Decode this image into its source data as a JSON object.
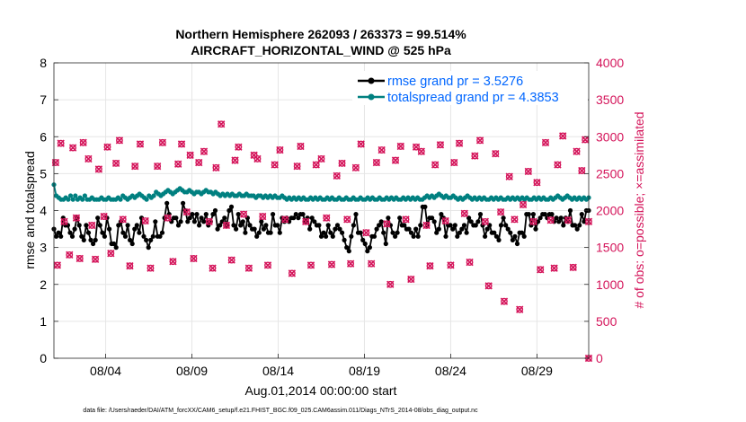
{
  "chart_data": {
    "type": "line",
    "title_line1": "Northern Hemisphere 262093 / 263373 = 99.514%",
    "title_line2": "AIRCRAFT_HORIZONTAL_WIND @ 525 hPa",
    "xlabel": "Aug.01,2014 00:00:00 start",
    "ylabel_left": "rmse and totalspread",
    "ylabel_right": "# of obs: o=possible; ×=assimilated",
    "footer": "data file: /Users/raeder/DAI/ATM_forcXX/CAM6_setup/f.e21.FHIST_BGC.f09_025.CAM6assim.011/Diags_NTrS_2014-08/obs_diag_output.nc",
    "x_tick_labels": [
      "08/04",
      "08/09",
      "08/14",
      "08/19",
      "08/24",
      "08/29"
    ],
    "x_tick_days": [
      4,
      9,
      14,
      19,
      24,
      29
    ],
    "xlim_days": [
      1,
      32
    ],
    "left_axis": {
      "ylim": [
        0,
        8
      ],
      "ticks": [
        "0",
        "1",
        "2",
        "3",
        "4",
        "5",
        "6",
        "7",
        "8"
      ]
    },
    "right_axis": {
      "ylim": [
        0,
        4000
      ],
      "ticks": [
        "0",
        "500",
        "1000",
        "1500",
        "2000",
        "2500",
        "3000",
        "3500",
        "4000"
      ]
    },
    "legend": [
      {
        "label": "rmse grand pr = 3.5276",
        "color": "#000000"
      },
      {
        "label": "totalspread grand pr = 4.3853",
        "color": "#008080"
      }
    ],
    "colors": {
      "rmse": "#000000",
      "spread": "#008080",
      "obs": "#d4145a",
      "legend_text": "#0066ff",
      "grid": "#e6e6e6"
    },
    "rmse_values": [
      3.5,
      3.3,
      3.4,
      3.3,
      3.8,
      3.6,
      3.6,
      3.4,
      3.3,
      3.5,
      3.8,
      3.6,
      3.3,
      3.2,
      3.6,
      3.4,
      3.2,
      3.1,
      3.2,
      3.8,
      3.6,
      3.4,
      3.3,
      3.8,
      3.5,
      3.1,
      3.1,
      3.0,
      3.6,
      3.7,
      3.4,
      3.3,
      3.6,
      3.2,
      3.1,
      3.5,
      3.6,
      3.4,
      3.8,
      3.3,
      3.2,
      3.0,
      3.2,
      3.3,
      3.7,
      3.3,
      3.3,
      3.4,
      3.8,
      4.2,
      3.9,
      3.7,
      3.8,
      3.8,
      3.6,
      3.7,
      4.2,
      4.0,
      3.7,
      3.8,
      3.9,
      3.7,
      3.9,
      3.6,
      3.8,
      3.7,
      3.9,
      3.6,
      3.7,
      3.9,
      4.0,
      3.5,
      3.6,
      3.7,
      3.8,
      3.6,
      4.0,
      4.1,
      3.6,
      3.5,
      3.9,
      3.6,
      3.7,
      3.4,
      3.8,
      3.6,
      3.5,
      3.5,
      3.3,
      3.4,
      3.7,
      3.5,
      3.6,
      3.4,
      3.4,
      3.9,
      3.6,
      3.6,
      3.4,
      3.8,
      3.7,
      3.8,
      3.7,
      3.8,
      3.8,
      3.9,
      3.8,
      3.9,
      3.9,
      3.7,
      3.8,
      3.5,
      3.8,
      3.7,
      3.6,
      3.6,
      3.3,
      3.4,
      3.3,
      3.6,
      3.4,
      3.3,
      3.5,
      3.6,
      3.5,
      3.4,
      3.2,
      3.0,
      2.9,
      3.3,
      3.6,
      3.9,
      3.4,
      3.4,
      3.2,
      3.1,
      2.9,
      3.0,
      3.3,
      3.3,
      3.5,
      3.6,
      3.7,
      3.4,
      3.1,
      3.8,
      3.6,
      3.4,
      3.3,
      3.4,
      3.8,
      3.6,
      3.6,
      3.5,
      3.5,
      3.4,
      3.3,
      3.5,
      3.3,
      3.6,
      4.1,
      4.1,
      3.6,
      3.8,
      3.8,
      3.7,
      3.4,
      3.5,
      3.9,
      3.8,
      3.3,
      3.6,
      3.6,
      3.5,
      3.6,
      3.3,
      3.4,
      3.5,
      3.6,
      3.4,
      3.8,
      3.7,
      3.6,
      3.6,
      3.7,
      3.9,
      3.6,
      3.3,
      3.5,
      3.6,
      3.4,
      3.4,
      3.3,
      3.2,
      3.6,
      3.8,
      3.6,
      3.5,
      3.4,
      3.2,
      3.3,
      3.1,
      3.4,
      3.4,
      3.3,
      3.9,
      3.9,
      3.6,
      3.9,
      3.5,
      3.7,
      3.8,
      3.9,
      3.9,
      3.8,
      3.9,
      3.9,
      3.7,
      3.8,
      3.7,
      3.8,
      3.6,
      3.8,
      3.7,
      4.0,
      3.6,
      3.6,
      3.5,
      3.6,
      3.9,
      3.7,
      4.0,
      4.0
    ],
    "spread_values": [
      4.7,
      4.4,
      4.35,
      4.3,
      4.3,
      4.35,
      4.3,
      4.4,
      4.3,
      4.4,
      4.3,
      4.35,
      4.3,
      4.4,
      4.3,
      4.3,
      4.35,
      4.3,
      4.3,
      4.3,
      4.35,
      4.3,
      4.3,
      4.35,
      4.3,
      4.3,
      4.3,
      4.35,
      4.3,
      4.4,
      4.35,
      4.3,
      4.35,
      4.4,
      4.35,
      4.4,
      4.45,
      4.4,
      4.35,
      4.3,
      4.4,
      4.35,
      4.4,
      4.5,
      4.45,
      4.4,
      4.45,
      4.5,
      4.55,
      4.5,
      4.45,
      4.5,
      4.55,
      4.6,
      4.55,
      4.5,
      4.5,
      4.55,
      4.5,
      4.45,
      4.5,
      4.5,
      4.45,
      4.5,
      4.55,
      4.5,
      4.5,
      4.45,
      4.5,
      4.45,
      4.4,
      4.45,
      4.4,
      4.45,
      4.4,
      4.45,
      4.4,
      4.4,
      4.45,
      4.4,
      4.4,
      4.45,
      4.4,
      4.4,
      4.4,
      4.35,
      4.4,
      4.4,
      4.35,
      4.4,
      4.35,
      4.4,
      4.35,
      4.4,
      4.35,
      4.35,
      4.4,
      4.35,
      4.3,
      4.35,
      4.3,
      4.35,
      4.3,
      4.35,
      4.3,
      4.35,
      4.3,
      4.3,
      4.35,
      4.3,
      4.35,
      4.3,
      4.35,
      4.3,
      4.3,
      4.35,
      4.3,
      4.35,
      4.3,
      4.3,
      4.35,
      4.3,
      4.3,
      4.35,
      4.3,
      4.3,
      4.35,
      4.3,
      4.3,
      4.35,
      4.3,
      4.3,
      4.35,
      4.3,
      4.35,
      4.3,
      4.3,
      4.35,
      4.3,
      4.3,
      4.35,
      4.3,
      4.35,
      4.3,
      4.35,
      4.3,
      4.3,
      4.35,
      4.3,
      4.35,
      4.3,
      4.35,
      4.3,
      4.35,
      4.3,
      4.3,
      4.35,
      4.4,
      4.35,
      4.4,
      4.35,
      4.4,
      4.45,
      4.4,
      4.35,
      4.4,
      4.35,
      4.35,
      4.4,
      4.35,
      4.3,
      4.35,
      4.3,
      4.35,
      4.4,
      4.35,
      4.3,
      4.35,
      4.3,
      4.35,
      4.3,
      4.35,
      4.3,
      4.3,
      4.35,
      4.3,
      4.35,
      4.3,
      4.35,
      4.3,
      4.3,
      4.35,
      4.3,
      4.35,
      4.3,
      4.35,
      4.3,
      4.35,
      4.3,
      4.35,
      4.3,
      4.3,
      4.35,
      4.3,
      4.35,
      4.3,
      4.35,
      4.3,
      4.3,
      4.35,
      4.3,
      4.35,
      4.4,
      4.35,
      4.3,
      4.35,
      4.4,
      4.35,
      4.3,
      4.35,
      4.3,
      4.35,
      4.3,
      4.35,
      4.3,
      4.35
    ],
    "obs_points": [
      {
        "d": 1.1,
        "n": 2650
      },
      {
        "d": 1.2,
        "n": 1260
      },
      {
        "d": 1.4,
        "n": 2910
      },
      {
        "d": 1.6,
        "n": 1850
      },
      {
        "d": 1.9,
        "n": 1400
      },
      {
        "d": 2.1,
        "n": 2850
      },
      {
        "d": 2.3,
        "n": 1900
      },
      {
        "d": 2.5,
        "n": 1350
      },
      {
        "d": 2.7,
        "n": 2920
      },
      {
        "d": 3.0,
        "n": 2700
      },
      {
        "d": 3.2,
        "n": 1800
      },
      {
        "d": 3.4,
        "n": 1340
      },
      {
        "d": 3.6,
        "n": 2560
      },
      {
        "d": 3.9,
        "n": 1920
      },
      {
        "d": 4.1,
        "n": 2860
      },
      {
        "d": 4.3,
        "n": 1420
      },
      {
        "d": 4.6,
        "n": 2640
      },
      {
        "d": 4.8,
        "n": 2950
      },
      {
        "d": 5.0,
        "n": 1880
      },
      {
        "d": 5.4,
        "n": 1250
      },
      {
        "d": 5.7,
        "n": 2600
      },
      {
        "d": 6.0,
        "n": 2900
      },
      {
        "d": 6.3,
        "n": 1860
      },
      {
        "d": 6.6,
        "n": 1220
      },
      {
        "d": 7.0,
        "n": 2600
      },
      {
        "d": 7.3,
        "n": 2920
      },
      {
        "d": 7.6,
        "n": 1900
      },
      {
        "d": 7.9,
        "n": 1310
      },
      {
        "d": 8.2,
        "n": 2630
      },
      {
        "d": 8.4,
        "n": 2900
      },
      {
        "d": 8.7,
        "n": 1980
      },
      {
        "d": 8.9,
        "n": 2750
      },
      {
        "d": 9.1,
        "n": 1350
      },
      {
        "d": 9.4,
        "n": 2650
      },
      {
        "d": 9.7,
        "n": 2800
      },
      {
        "d": 10.0,
        "n": 1850
      },
      {
        "d": 10.2,
        "n": 1220
      },
      {
        "d": 10.4,
        "n": 2580
      },
      {
        "d": 10.7,
        "n": 3170
      },
      {
        "d": 11.0,
        "n": 1800
      },
      {
        "d": 11.3,
        "n": 1330
      },
      {
        "d": 11.5,
        "n": 2680
      },
      {
        "d": 11.7,
        "n": 2860
      },
      {
        "d": 12.0,
        "n": 1950
      },
      {
        "d": 12.3,
        "n": 1220
      },
      {
        "d": 12.6,
        "n": 2750
      },
      {
        "d": 12.8,
        "n": 2700
      },
      {
        "d": 13.1,
        "n": 1920
      },
      {
        "d": 13.4,
        "n": 1260
      },
      {
        "d": 13.8,
        "n": 2620
      },
      {
        "d": 14.1,
        "n": 2820
      },
      {
        "d": 14.4,
        "n": 1880
      },
      {
        "d": 14.8,
        "n": 1150
      },
      {
        "d": 15.1,
        "n": 2600
      },
      {
        "d": 15.3,
        "n": 2870
      },
      {
        "d": 15.6,
        "n": 1850
      },
      {
        "d": 15.9,
        "n": 1260
      },
      {
        "d": 16.2,
        "n": 2620
      },
      {
        "d": 16.5,
        "n": 2700
      },
      {
        "d": 16.8,
        "n": 1900
      },
      {
        "d": 17.1,
        "n": 1270
      },
      {
        "d": 17.4,
        "n": 2470
      },
      {
        "d": 17.7,
        "n": 2640
      },
      {
        "d": 18.0,
        "n": 1880
      },
      {
        "d": 18.2,
        "n": 1280
      },
      {
        "d": 18.5,
        "n": 2580
      },
      {
        "d": 18.8,
        "n": 2900
      },
      {
        "d": 19.1,
        "n": 1700
      },
      {
        "d": 19.4,
        "n": 1280
      },
      {
        "d": 19.7,
        "n": 2650
      },
      {
        "d": 20.0,
        "n": 2820
      },
      {
        "d": 20.3,
        "n": 1820
      },
      {
        "d": 20.5,
        "n": 1000
      },
      {
        "d": 20.8,
        "n": 2680
      },
      {
        "d": 21.1,
        "n": 2870
      },
      {
        "d": 21.4,
        "n": 1880
      },
      {
        "d": 21.7,
        "n": 1070
      },
      {
        "d": 22.0,
        "n": 2860
      },
      {
        "d": 22.3,
        "n": 2800
      },
      {
        "d": 22.6,
        "n": 1800
      },
      {
        "d": 22.8,
        "n": 1250
      },
      {
        "d": 23.1,
        "n": 2620
      },
      {
        "d": 23.4,
        "n": 2890
      },
      {
        "d": 23.7,
        "n": 1860
      },
      {
        "d": 24.0,
        "n": 1260
      },
      {
        "d": 24.2,
        "n": 2650
      },
      {
        "d": 24.5,
        "n": 2910
      },
      {
        "d": 24.8,
        "n": 1960
      },
      {
        "d": 25.1,
        "n": 1300
      },
      {
        "d": 25.4,
        "n": 2740
      },
      {
        "d": 25.7,
        "n": 2950
      },
      {
        "d": 26.0,
        "n": 1850
      },
      {
        "d": 26.2,
        "n": 980
      },
      {
        "d": 26.6,
        "n": 2770
      },
      {
        "d": 26.9,
        "n": 1980
      },
      {
        "d": 27.1,
        "n": 770
      },
      {
        "d": 27.4,
        "n": 2460
      },
      {
        "d": 27.7,
        "n": 1880
      },
      {
        "d": 28.0,
        "n": 660
      },
      {
        "d": 28.2,
        "n": 2080
      },
      {
        "d": 28.5,
        "n": 2530
      },
      {
        "d": 28.8,
        "n": 1850
      },
      {
        "d": 29.0,
        "n": 2380
      },
      {
        "d": 29.2,
        "n": 1200
      },
      {
        "d": 29.5,
        "n": 2920
      },
      {
        "d": 29.8,
        "n": 1870
      },
      {
        "d": 30.0,
        "n": 1220
      },
      {
        "d": 30.2,
        "n": 2620
      },
      {
        "d": 30.5,
        "n": 3010
      },
      {
        "d": 30.8,
        "n": 1870
      },
      {
        "d": 31.1,
        "n": 1230
      },
      {
        "d": 31.3,
        "n": 2800
      },
      {
        "d": 31.6,
        "n": 2540
      },
      {
        "d": 31.8,
        "n": 2960
      },
      {
        "d": 32.0,
        "n": 1850
      },
      {
        "d": 32.0,
        "n": 0
      }
    ]
  }
}
